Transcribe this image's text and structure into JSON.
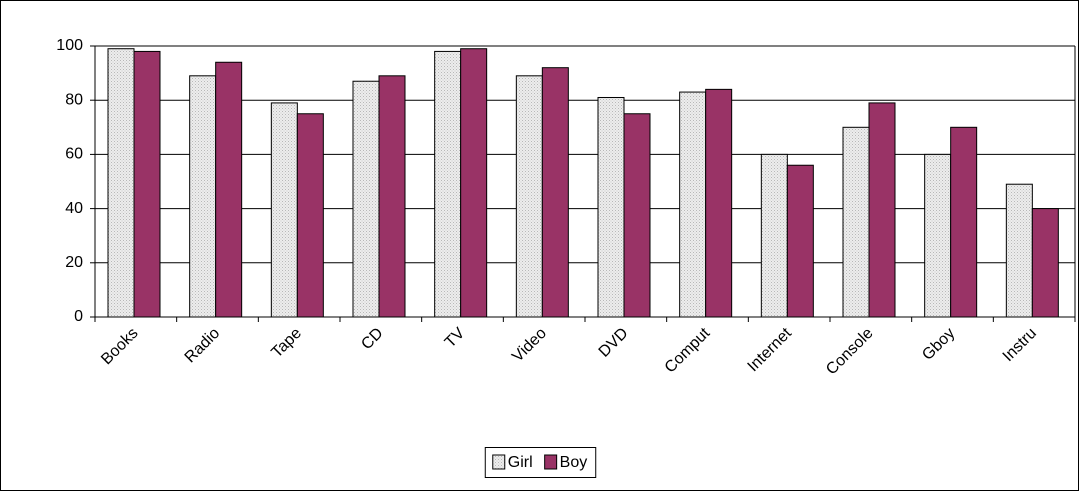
{
  "chart_data": {
    "type": "bar",
    "categories": [
      "Books",
      "Radio",
      "Tape",
      "CD",
      "TV",
      "Video",
      "DVD",
      "Comput",
      "Internet",
      "Console",
      "Gboy",
      "Instru"
    ],
    "series": [
      {
        "name": "Girl",
        "color": "#e0e0e0",
        "values": [
          99,
          89,
          79,
          87,
          98,
          89,
          81,
          83,
          60,
          70,
          60,
          49
        ]
      },
      {
        "name": "Boy",
        "color": "#993366",
        "values": [
          98,
          94,
          75,
          89,
          99,
          92,
          75,
          84,
          56,
          79,
          70,
          40
        ]
      }
    ],
    "ylim": [
      0,
      100
    ],
    "yticks": [
      0,
      20,
      40,
      60,
      80,
      100
    ],
    "grid": true,
    "legend": "bottom"
  }
}
